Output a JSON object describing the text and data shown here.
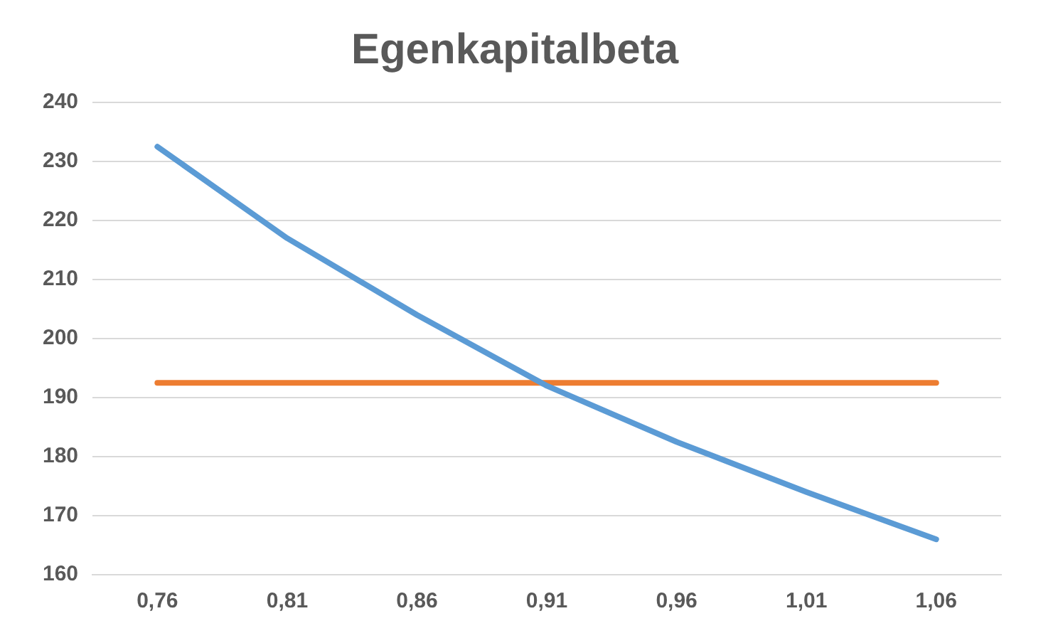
{
  "chart_data": {
    "type": "line",
    "title": "Egenkapitalbeta",
    "categories": [
      "0,76",
      "0,81",
      "0,86",
      "0,91",
      "0,96",
      "1,01",
      "1,06"
    ],
    "series": [
      {
        "color": "#5b9bd5",
        "values": [
          232.5,
          217,
          204,
          192,
          182.5,
          174,
          166
        ]
      },
      {
        "color": "#ed7d31",
        "values": [
          192.5,
          192.5,
          192.5,
          192.5,
          192.5,
          192.5,
          192.5
        ]
      }
    ],
    "ylim": [
      160,
      240
    ],
    "yticks": [
      160,
      170,
      180,
      190,
      200,
      210,
      220,
      230,
      240
    ],
    "grid": "y",
    "legend": false,
    "marker": "none",
    "line_style": "solid"
  }
}
